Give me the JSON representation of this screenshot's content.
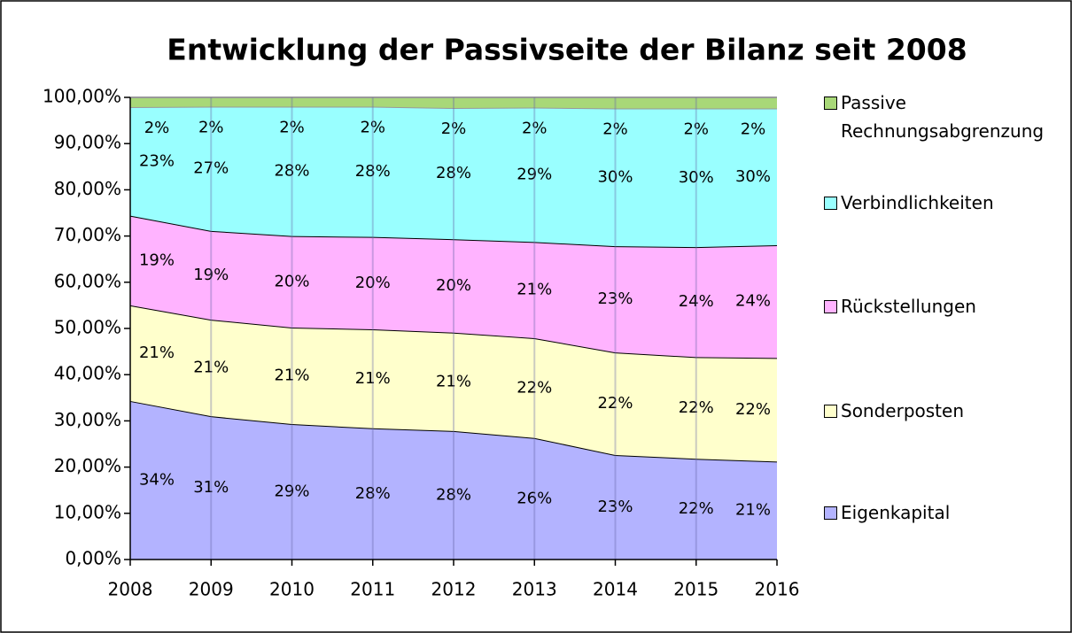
{
  "chart_data": {
    "type": "stacked_area",
    "title": "Entwicklung der Passivseite der Bilanz seit 2008",
    "categories": [
      "2008",
      "2009",
      "2010",
      "2011",
      "2012",
      "2013",
      "2014",
      "2015",
      "2016"
    ],
    "series": [
      {
        "name": "Eigenkapital",
        "color": "#b3b3ff",
        "line": "#000000",
        "values": [
          34.3,
          31.0,
          29.3,
          28.4,
          27.8,
          26.3,
          22.6,
          21.8,
          21.2
        ],
        "value_labels": [
          "34%",
          "31%",
          "29%",
          "28%",
          "28%",
          "26%",
          "23%",
          "22%",
          "21%"
        ]
      },
      {
        "name": "Sonderposten",
        "color": "#ffffcc",
        "line": "#000000",
        "values": [
          20.7,
          20.9,
          20.9,
          21.4,
          21.3,
          21.6,
          22.2,
          22.0,
          22.4
        ],
        "value_labels": [
          "21%",
          "21%",
          "21%",
          "21%",
          "21%",
          "22%",
          "22%",
          "22%",
          "22%"
        ]
      },
      {
        "name": "Rückstellungen",
        "color": "#ffb3ff",
        "line": "#000000",
        "values": [
          19.4,
          19.2,
          19.8,
          20.0,
          20.2,
          20.8,
          23.0,
          23.8,
          24.4
        ],
        "value_labels": [
          "19%",
          "19%",
          "20%",
          "20%",
          "20%",
          "21%",
          "23%",
          "24%",
          "24%"
        ]
      },
      {
        "name": "Verbindlichkeiten",
        "color": "#99ffff",
        "line": "#999999",
        "values": [
          23.5,
          26.9,
          28.0,
          28.2,
          28.4,
          29.1,
          29.8,
          30.0,
          29.6
        ],
        "value_labels": [
          "23%",
          "27%",
          "28%",
          "28%",
          "28%",
          "29%",
          "30%",
          "30%",
          "30%"
        ]
      },
      {
        "name": "Passive Rechnungsabgrenzung",
        "color": "#a8d878",
        "line": "#999999",
        "values": [
          2.1,
          2.0,
          2.0,
          2.0,
          2.3,
          2.2,
          2.4,
          2.4,
          2.4
        ],
        "value_labels": [
          "2%",
          "2%",
          "2%",
          "2%",
          "2%",
          "2%",
          "2%",
          "2%",
          "2%"
        ]
      }
    ],
    "ylim": [
      0,
      100
    ],
    "yticks": [
      {
        "value": 0,
        "label": "0,00%"
      },
      {
        "value": 10,
        "label": "10,00%"
      },
      {
        "value": 20,
        "label": "20,00%"
      },
      {
        "value": 30,
        "label": "30,00%"
      },
      {
        "value": 40,
        "label": "40,00%"
      },
      {
        "value": 50,
        "label": "50,00%"
      },
      {
        "value": 60,
        "label": "60,00%"
      },
      {
        "value": 70,
        "label": "70,00%"
      },
      {
        "value": 80,
        "label": "80,00%"
      },
      {
        "value": 90,
        "label": "90,00%"
      },
      {
        "value": 100,
        "label": "100,00%"
      }
    ],
    "legend": "right"
  }
}
